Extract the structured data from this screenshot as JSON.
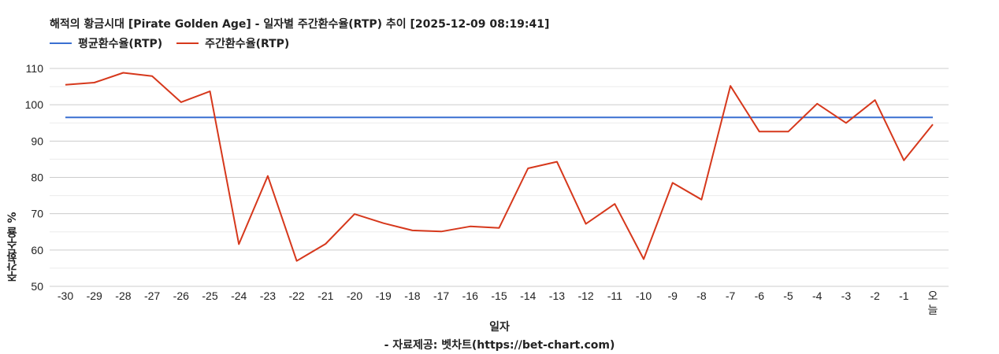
{
  "chart_data": {
    "type": "line",
    "title": "해적의 황금시대 [Pirate Golden Age] - 일자별 주간환수율(RTP) 추이 [2025-12-09 08:19:41]",
    "xlabel": "일자",
    "ylabel": "주간환수율 %",
    "source": "- 자료제공: 벳차트(https://bet-chart.com)",
    "legend_position": "top-left",
    "grid": true,
    "ylim": [
      50,
      110
    ],
    "yticks": [
      50,
      60,
      70,
      80,
      90,
      100,
      110
    ],
    "categories": [
      "-30",
      "-29",
      "-28",
      "-27",
      "-26",
      "-25",
      "-24",
      "-23",
      "-22",
      "-21",
      "-20",
      "-19",
      "-18",
      "-17",
      "-16",
      "-15",
      "-14",
      "-13",
      "-12",
      "-11",
      "-10",
      "-9",
      "-8",
      "-7",
      "-6",
      "-5",
      "-4",
      "-3",
      "-2",
      "-1",
      "오늘"
    ],
    "series": [
      {
        "name": "평균환수율(RTP)",
        "color": "#3a6fd1",
        "values": [
          96.5,
          96.5,
          96.5,
          96.5,
          96.5,
          96.5,
          96.5,
          96.5,
          96.5,
          96.5,
          96.5,
          96.5,
          96.5,
          96.5,
          96.5,
          96.5,
          96.5,
          96.5,
          96.5,
          96.5,
          96.5,
          96.5,
          96.5,
          96.5,
          96.5,
          96.5,
          96.5,
          96.5,
          96.5,
          96.5,
          96.5
        ]
      },
      {
        "name": "주간환수율(RTP)",
        "color": "#d6381c",
        "values": [
          105.5,
          106.1,
          108.8,
          107.9,
          100.7,
          103.7,
          61.6,
          80.4,
          57.0,
          61.7,
          69.9,
          67.4,
          65.4,
          65.1,
          66.5,
          66.1,
          82.5,
          84.3,
          67.2,
          72.7,
          57.5,
          78.5,
          73.9,
          105.2,
          92.6,
          92.6,
          100.3,
          95.0,
          101.3,
          84.7,
          94.6
        ]
      }
    ]
  }
}
